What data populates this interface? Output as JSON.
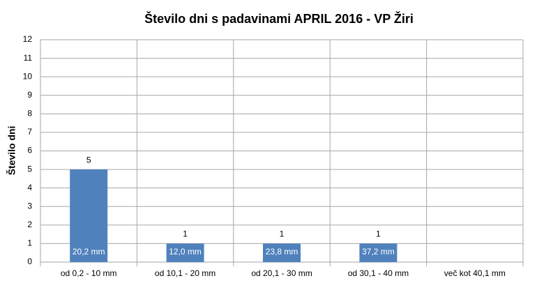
{
  "chart_data": {
    "type": "bar",
    "title": "Število dni s padavinami  APRIL 2016 - VP Žiri",
    "y_label": "Število dni",
    "categories": [
      "od 0,2 - 10 mm",
      "od 10,1 - 20 mm",
      "od 20,1 - 30 mm",
      "od 30,1 - 40 mm",
      "več kot 40,1 mm"
    ],
    "values": [
      5,
      1,
      1,
      1,
      null
    ],
    "bar_annotations": [
      "20,2 mm",
      "12,0 mm",
      "23,8 mm",
      "37,2 mm",
      null
    ],
    "color": "#4f81bd",
    "ylim": [
      0,
      12
    ],
    "yticks": [
      0,
      1,
      2,
      3,
      4,
      5,
      6,
      7,
      8,
      9,
      10,
      11,
      12
    ],
    "grid": true
  }
}
